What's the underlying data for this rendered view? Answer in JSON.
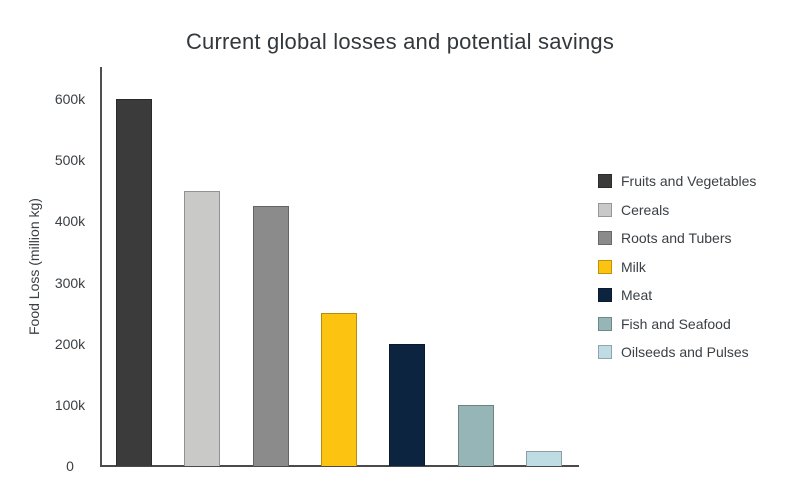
{
  "title": "Current global losses and potential savings",
  "colors": {
    "background": "#ffffff",
    "title_text": "#33383d",
    "axis_line": "#4a4a4a",
    "tick_text": "#3b4045",
    "legend_text": "#3b4045"
  },
  "chart_data": {
    "type": "bar",
    "title": "Current global losses and potential savings",
    "xlabel": "",
    "ylabel": "Food Loss (million kg)",
    "ylim": [
      0,
      650000
    ],
    "grid": false,
    "legend_position": "right",
    "yticks": [
      {
        "value": 0,
        "label": "0"
      },
      {
        "value": 100000,
        "label": "100k"
      },
      {
        "value": 200000,
        "label": "200k"
      },
      {
        "value": 300000,
        "label": "300k"
      },
      {
        "value": 400000,
        "label": "400k"
      },
      {
        "value": 500000,
        "label": "500k"
      },
      {
        "value": 600000,
        "label": "600k"
      }
    ],
    "categories": [
      "Fruits and Vegetables",
      "Cereals",
      "Roots and Tubers",
      "Milk",
      "Meat",
      "Fish and Seafood",
      "Oilseeds and Pulses"
    ],
    "values": [
      600000,
      450000,
      425000,
      250000,
      200000,
      100000,
      25000
    ],
    "bar_colors": [
      "#3b3b3b",
      "#c9cac8",
      "#8b8b8b",
      "#fcc411",
      "#0d2440",
      "#96b5b6",
      "#bfdce4"
    ]
  }
}
